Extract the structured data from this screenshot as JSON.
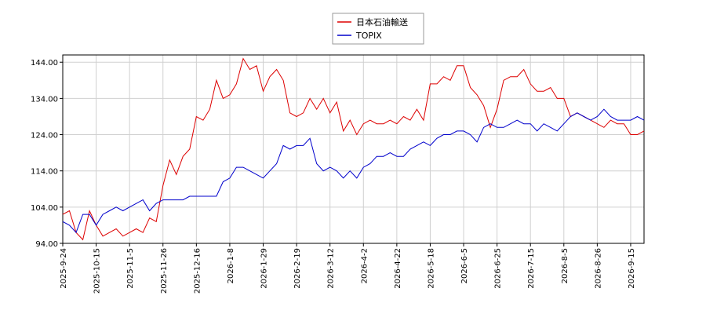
{
  "chart_data": {
    "type": "line",
    "x": [
      "2025-9-24",
      null,
      null,
      null,
      null,
      "2025-10-15",
      null,
      null,
      null,
      null,
      "2025-11-5",
      null,
      null,
      null,
      null,
      "2025-11-26",
      null,
      null,
      null,
      null,
      "2025-12-16",
      null,
      null,
      null,
      null,
      "2026-1-8",
      null,
      null,
      null,
      null,
      "2026-1-29",
      null,
      null,
      null,
      null,
      "2026-2-19",
      null,
      null,
      null,
      null,
      "2026-3-12",
      null,
      null,
      null,
      null,
      "2026-4-2",
      null,
      null,
      null,
      null,
      "2026-4-22",
      null,
      null,
      null,
      null,
      "2026-5-18",
      null,
      null,
      null,
      null,
      "2026-6-5",
      null,
      null,
      null,
      null,
      "2026-6-25",
      null,
      null,
      null,
      null,
      "2026-7-15",
      null,
      null,
      null,
      null,
      "2026-8-5",
      null,
      null,
      null,
      null,
      "2026-8-26",
      null,
      null,
      null,
      null,
      "2026-9-15",
      null,
      null
    ],
    "series": [
      {
        "name": "日本石油輸送",
        "color": "#dd0000",
        "values": [
          102,
          103,
          97,
          95,
          103,
          99,
          96,
          97,
          98,
          96,
          97,
          98,
          97,
          101,
          100,
          110,
          117,
          113,
          118,
          120,
          129,
          128,
          131,
          139,
          134,
          135,
          138,
          145,
          142,
          143,
          136,
          140,
          142,
          139,
          130,
          129,
          130,
          134,
          131,
          134,
          130,
          133,
          125,
          128,
          124,
          127,
          128,
          127,
          127,
          128,
          127,
          129,
          128,
          131,
          128,
          138,
          138,
          140,
          139,
          143,
          143,
          137,
          135,
          132,
          126,
          131,
          139,
          140,
          140,
          142,
          138,
          136,
          136,
          137,
          134,
          134,
          129,
          130,
          129,
          128,
          127,
          126,
          128,
          127,
          127,
          124,
          124,
          125
        ]
      },
      {
        "name": "TOPIX",
        "color": "#0000cc",
        "values": [
          100,
          99,
          97,
          102,
          102,
          99,
          102,
          103,
          104,
          103,
          104,
          105,
          106,
          103,
          105,
          106,
          106,
          106,
          106,
          107,
          107,
          107,
          107,
          107,
          111,
          112,
          115,
          115,
          114,
          113,
          112,
          114,
          116,
          121,
          120,
          121,
          121,
          123,
          116,
          114,
          115,
          114,
          112,
          114,
          112,
          115,
          116,
          118,
          118,
          119,
          118,
          118,
          120,
          121,
          122,
          121,
          123,
          124,
          124,
          125,
          125,
          124,
          122,
          126,
          127,
          126,
          126,
          127,
          128,
          127,
          127,
          125,
          127,
          126,
          125,
          127,
          129,
          130,
          129,
          128,
          129,
          131,
          129,
          128,
          128,
          128,
          129,
          128
        ]
      }
    ],
    "ylim": [
      94,
      146
    ],
    "yticks": [
      {
        "value": 94,
        "label": "94.00"
      },
      {
        "value": 104,
        "label": "104.00"
      },
      {
        "value": 114,
        "label": "114.00"
      },
      {
        "value": 124,
        "label": "124.00"
      },
      {
        "value": 134,
        "label": "134.00"
      },
      {
        "value": 144,
        "label": "144.00"
      }
    ],
    "grid": true,
    "legend": "top"
  }
}
